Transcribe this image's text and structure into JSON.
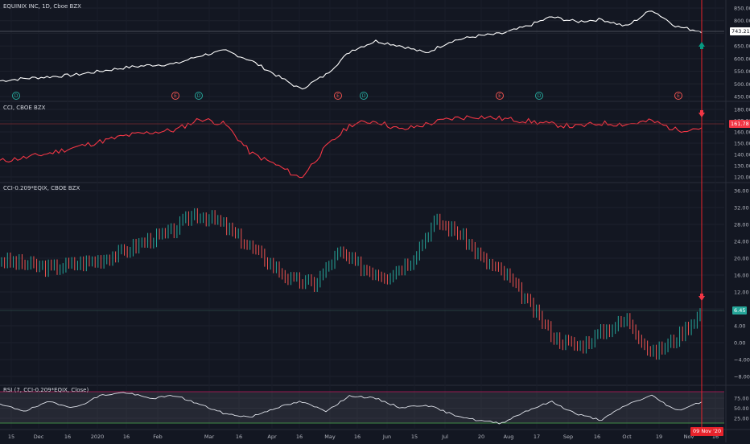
{
  "panes": {
    "main": {
      "title": "EQUINIX INC, 1D, Cboe BZX",
      "price_tag": "743.21",
      "y_ticks": [
        "850.00",
        "800.00",
        "700.00",
        "650.00",
        "600.00",
        "550.00",
        "500.00",
        "450.00"
      ]
    },
    "cci": {
      "title": "CCI, CBOE BZX",
      "price_tag": "161.78",
      "y_ticks": [
        "180.00",
        "170.00",
        "160.00",
        "150.00",
        "140.00",
        "130.00",
        "120.00"
      ]
    },
    "ratio": {
      "title": "CCI-0.209*EQIX, CBOE BZX",
      "price_tag": "6.45",
      "y_ticks": [
        "36.00",
        "32.00",
        "28.00",
        "24.00",
        "20.00",
        "16.00",
        "12.00",
        "8.00",
        "4.00",
        "0.00",
        "−4.00",
        "−8.00"
      ]
    },
    "rsi": {
      "title": "RSI (7, CCI-0.209*EQIX, Close)",
      "y_ticks": [
        "75.00",
        "50.00",
        "25.00"
      ]
    }
  },
  "events": [
    "D",
    "E",
    "D",
    "E",
    "D",
    "E",
    "D",
    "E"
  ],
  "x_axis": {
    "labels": [
      "15",
      "Dec",
      "16",
      "2020",
      "16",
      "Feb",
      "Mar",
      "16",
      "Apr",
      "16",
      "May",
      "16",
      "Jun",
      "15",
      "Jul",
      "20",
      "Aug",
      "17",
      "Sep",
      "16",
      "Oct",
      "19",
      "Nov",
      "16"
    ],
    "cursor_date": "09 Nov '20"
  },
  "colors": {
    "background": "#131722",
    "price_line": "#ffffff",
    "cci_line": "#f23645",
    "up_bar": "#26a69a",
    "down_bar": "#ef5350",
    "cursor": "#e8232b",
    "up_arrow": "#089981",
    "down_arrow": "#f23645"
  },
  "chart_data": [
    {
      "type": "line",
      "title": "EQUINIX INC, 1D, Cboe BZX",
      "series": [
        {
          "name": "EQUINIX INC",
          "values": [
            535,
            545,
            552,
            560,
            575,
            590,
            600,
            605,
            640,
            660,
            620,
            560,
            500,
            560,
            660,
            700,
            680,
            650,
            700,
            720,
            730,
            760,
            800,
            780,
            790,
            760,
            830,
            760,
            740
          ]
        }
      ],
      "ylim": [
        450,
        870
      ],
      "last_value": 743.21
    },
    {
      "type": "line",
      "title": "CCI, CBOE BZX",
      "series": [
        {
          "name": "CCI",
          "values": [
            133,
            136,
            140,
            145,
            150,
            155,
            158,
            160,
            170,
            165,
            140,
            130,
            118,
            145,
            165,
            168,
            160,
            165,
            170,
            172,
            170,
            168,
            165,
            163,
            166,
            165,
            168,
            160,
            162
          ]
        }
      ],
      "ylim": [
        115,
        185
      ],
      "last_value": 161.78
    },
    {
      "type": "bar",
      "title": "CCI-0.209*EQIX, CBOE BZX",
      "series": [
        {
          "name": "CCI-0.209*EQIX",
          "values": [
            20,
            19,
            18,
            19,
            20,
            22,
            25,
            27,
            32,
            30,
            25,
            20,
            15,
            14,
            22,
            18,
            16,
            20,
            30,
            27,
            20,
            16,
            8,
            0,
            -2,
            2,
            5,
            -4,
            0,
            6.45
          ]
        }
      ],
      "ylim": [
        -10,
        38
      ],
      "last_value": 6.45
    },
    {
      "type": "line",
      "title": "RSI (7, CCI-0.209*EQIX, Close)",
      "series": [
        {
          "name": "RSI",
          "values": [
            55,
            45,
            60,
            50,
            70,
            75,
            65,
            70,
            55,
            40,
            35,
            50,
            60,
            45,
            70,
            65,
            50,
            55,
            40,
            30,
            25,
            45,
            60,
            40,
            30,
            55,
            70,
            45,
            60
          ]
        }
      ],
      "ylim": [
        20,
        80
      ]
    }
  ]
}
